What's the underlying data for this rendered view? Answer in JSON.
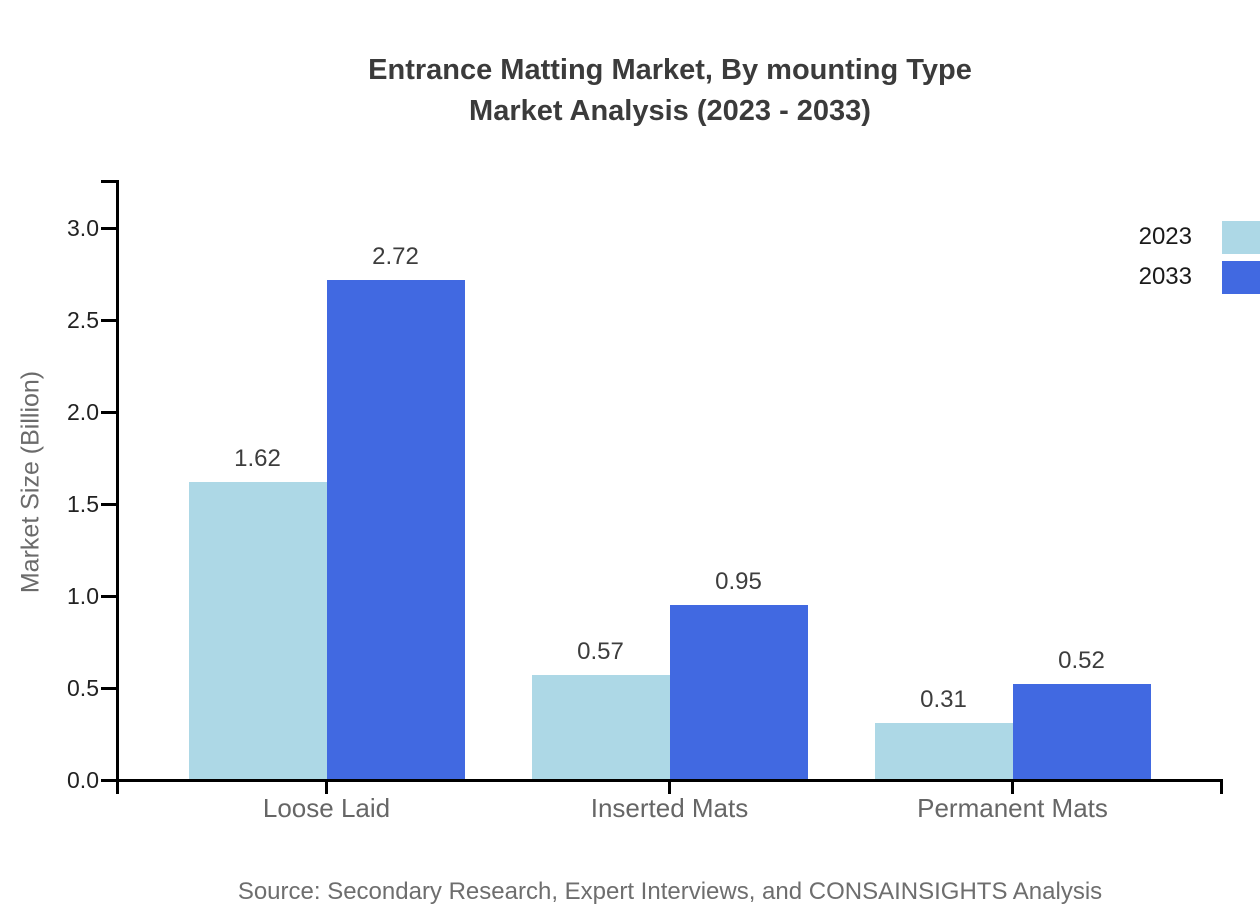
{
  "title": {
    "line1": "Entrance Matting Market, By mounting Type",
    "line2": "Market Analysis (2023 - 2033)"
  },
  "source_note": "Source: Secondary Research, Expert Interviews, and CONSAINSIGHTS Analysis",
  "chart_data": {
    "type": "bar",
    "title": "Entrance Matting Market, By mounting Type Market Analysis (2023 - 2033)",
    "categories": [
      "Loose Laid",
      "Inserted Mats",
      "Permanent Mats"
    ],
    "series": [
      {
        "name": "2023",
        "color": "#ADD8E6",
        "values": [
          1.62,
          0.57,
          0.31
        ]
      },
      {
        "name": "2033",
        "color": "#4169E1",
        "values": [
          2.72,
          0.95,
          0.52
        ]
      }
    ],
    "xlabel": "",
    "ylabel": "Market Size (Billion)",
    "ylim": [
      0,
      3.25
    ],
    "yticks": [
      0,
      0.5,
      1,
      1.5,
      2,
      2.5,
      3
    ],
    "ytick_format": "one-decimal",
    "grid": false,
    "legend_position": "top-right",
    "value_labels": true
  },
  "colors": {
    "series_2023": "#ADD8E6",
    "series_2033": "#4169E1",
    "axis": "#000000",
    "title_text": "#3b3b3b",
    "tick_text": "#222222",
    "value_text": "#3d3d3d",
    "category_text": "#666666",
    "axis_label_text": "#6b6b6b",
    "source_text": "#6e6e6e",
    "background": "#ffffff"
  }
}
